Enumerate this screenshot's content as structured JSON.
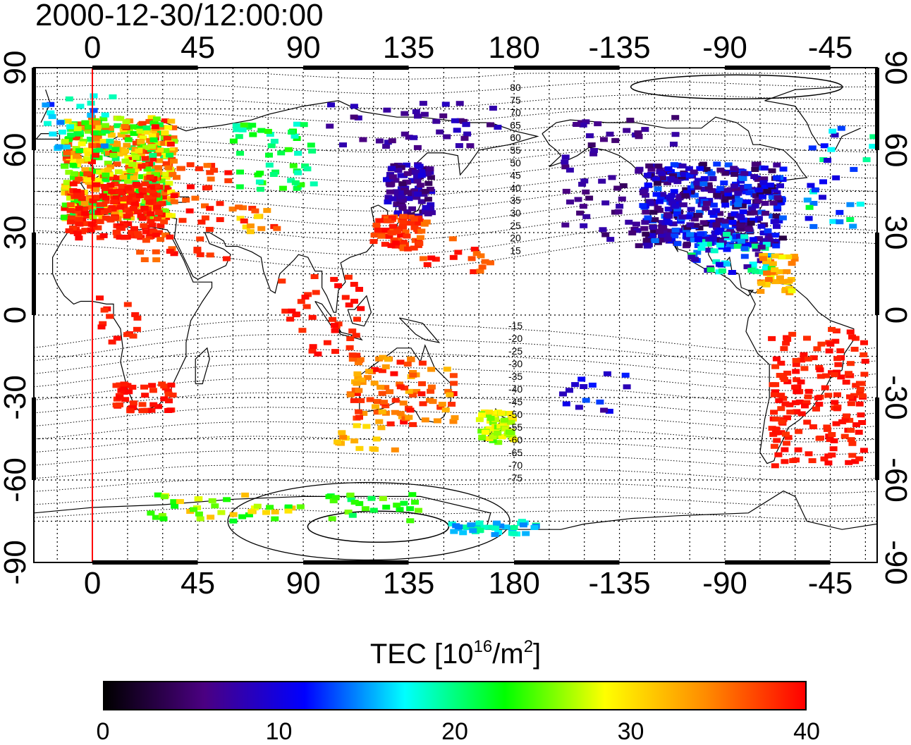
{
  "title": "2000-12-30/12:00:00",
  "x_tick_labels": [
    "0",
    "45",
    "90",
    "135",
    "180",
    "-135",
    "-90",
    "-45"
  ],
  "y_tick_labels": [
    "90",
    "60",
    "30",
    "0",
    "-30",
    "-60",
    "-90"
  ],
  "contour_labels_north": [
    "80",
    "75",
    "70",
    "65",
    "60",
    "55",
    "50",
    "45",
    "40",
    "35",
    "30",
    "25",
    "20",
    "15"
  ],
  "contour_labels_south": [
    "-15",
    "-20",
    "-25",
    "-30",
    "-35",
    "-40",
    "-45",
    "-50",
    "-55",
    "-60",
    "-65",
    "-70",
    "-75"
  ],
  "colorbar": {
    "title_prefix": "TEC  [10",
    "title_exp1": "16",
    "title_mid": "/m",
    "title_exp2": "2",
    "title_suffix": "]",
    "ticks": [
      "0",
      "10",
      "20",
      "30",
      "40"
    ],
    "range": [
      0,
      40
    ],
    "colors": [
      "#000000",
      "#4b0082",
      "#0000ff",
      "#00ffff",
      "#00ff00",
      "#ffff00",
      "#ff8c00",
      "#ff0000"
    ]
  },
  "map": {
    "lon_center": 150,
    "lon_range": [
      -25,
      335
    ],
    "lat_range": [
      -90,
      90
    ],
    "grid_lines": true,
    "noon_meridian_lon": 0,
    "noon_meridian_color": "#ff0000"
  }
}
